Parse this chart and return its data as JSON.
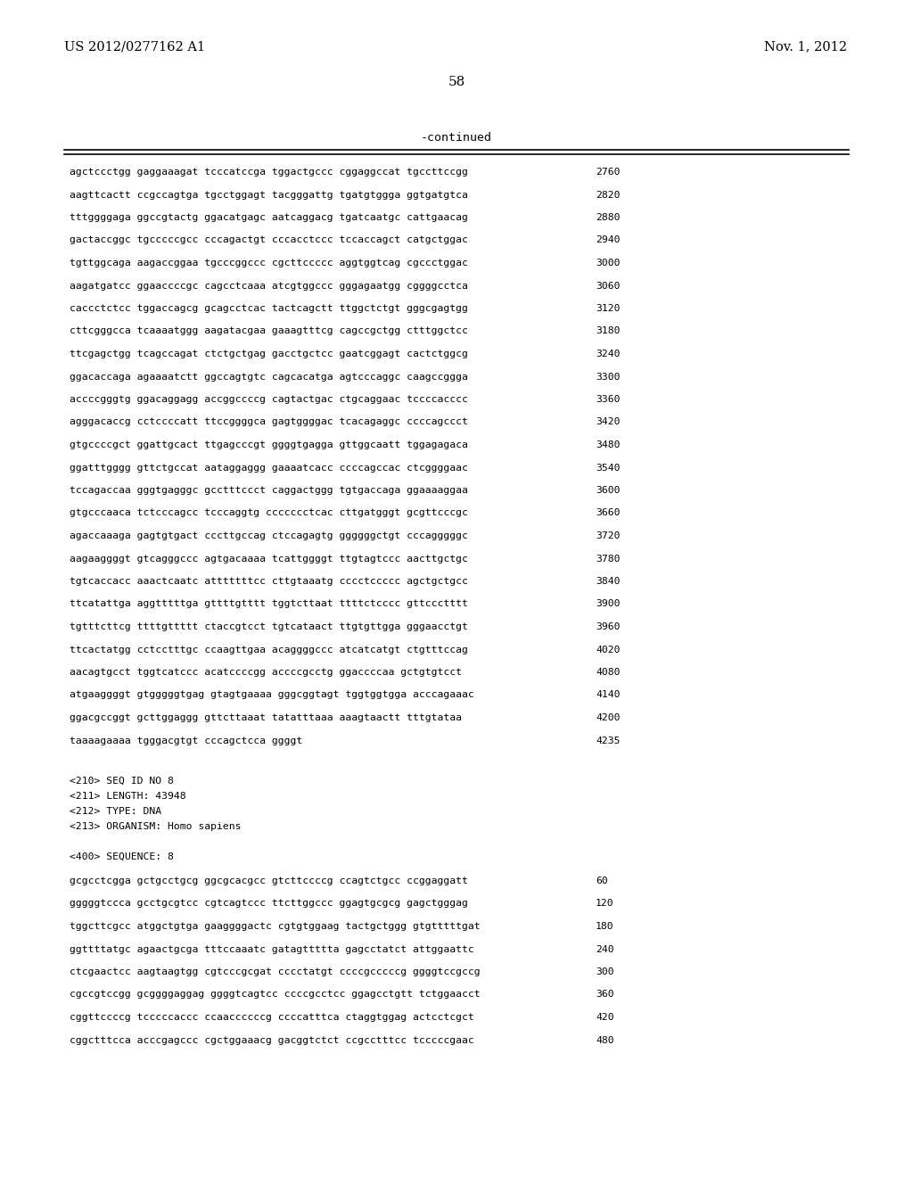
{
  "header_left": "US 2012/0277162 A1",
  "header_right": "Nov. 1, 2012",
  "page_number": "58",
  "continued_label": "-continued",
  "background_color": "#ffffff",
  "text_color": "#000000",
  "sequence_lines": [
    [
      "agctccctgg gaggaaagat tcccatccga tggactgccc cggaggccat tgccttccgg",
      "2760"
    ],
    [
      "aagttcactt ccgccagtga tgcctggagt tacgggattg tgatgtggga ggtgatgtca",
      "2820"
    ],
    [
      "tttggggaga ggccgtactg ggacatgagc aatcaggacg tgatcaatgc cattgaacag",
      "2880"
    ],
    [
      "gactaccggc tgcccccgcc cccagactgt cccacctccc tccaccagct catgctggac",
      "2940"
    ],
    [
      "tgttggcaga aagaccggaa tgcccggccc cgcttccccc aggtggtcag cgccctggac",
      "3000"
    ],
    [
      "aagatgatcc ggaaccccgc cagcctcaaa atcgtggccc gggagaatgg cggggcctca",
      "3060"
    ],
    [
      "caccctctcc tggaccagcg gcagcctcac tactcagctt ttggctctgt gggcgagtgg",
      "3120"
    ],
    [
      "cttcgggcca tcaaaatggg aagatacgaa gaaagtttcg cagccgctgg ctttggctcc",
      "3180"
    ],
    [
      "ttcgagctgg tcagccagat ctctgctgag gacctgctcc gaatcggagt cactctggcg",
      "3240"
    ],
    [
      "ggacaccaga agaaaatctt ggccagtgtc cagcacatga agtcccaggc caagccggga",
      "3300"
    ],
    [
      "accccgggtg ggacaggagg accggccccg cagtactgac ctgcaggaac tccccacccc",
      "3360"
    ],
    [
      "agggacaccg cctccccatt ttccggggca gagtggggac tcacagaggc ccccagccct",
      "3420"
    ],
    [
      "gtgccccgct ggattgcact ttgagcccgt ggggtgagga gttggcaatt tggagagaca",
      "3480"
    ],
    [
      "ggatttgggg gttctgccat aataggaggg gaaaatcacc ccccagccac ctcggggaac",
      "3540"
    ],
    [
      "tccagaccaa gggtgagggc gcctttccct caggactggg tgtgaccaga ggaaaaggaa",
      "3600"
    ],
    [
      "gtgcccaaca tctcccagcc tcccaggtg ccccccctcac cttgatgggt gcgttcccgc",
      "3660"
    ],
    [
      "agaccaaaga gagtgtgact cccttgccag ctccagagtg ggggggctgt cccagggggc",
      "3720"
    ],
    [
      "aagaaggggt gtcagggccc agtgacaaaa tcattggggt ttgtagtccc aacttgctgc",
      "3780"
    ],
    [
      "tgtcaccacc aaactcaatc atttttttcc cttgtaaatg cccctccccc agctgctgcc",
      "3840"
    ],
    [
      "ttcatattga aggtttttga gttttgtttt tggtcttaat ttttctcccc gttccctttt",
      "3900"
    ],
    [
      "tgtttcttcg ttttgttttt ctaccgtcct tgtcataact ttgtgttgga gggaacctgt",
      "3960"
    ],
    [
      "ttcactatgg cctcctttgc ccaagttgaa acaggggccc atcatcatgt ctgtttccag",
      "4020"
    ],
    [
      "aacagtgcct tggtcatccc acatccccgg accccgcctg ggaccccaa gctgtgtcct",
      "4080"
    ],
    [
      "atgaaggggt gtgggggtgag gtagtgaaaa gggcggtagt tggtggtgga acccagaaac",
      "4140"
    ],
    [
      "ggacgccggt gcttggaggg gttcttaaat tatatttaaa aaagtaactt tttgtataa",
      "4200"
    ],
    [
      "taaaagaaaa tgggacgtgt cccagctcca ggggt",
      "4235"
    ]
  ],
  "metadata_lines": [
    "<210> SEQ ID NO 8",
    "<211> LENGTH: 43948",
    "<212> TYPE: DNA",
    "<213> ORGANISM: Homo sapiens",
    "",
    "<400> SEQUENCE: 8"
  ],
  "sequence2_lines": [
    [
      "gcgcctcgga gctgcctgcg ggcgcacgcc gtcttccccg ccagtctgcc ccggaggatt",
      "60"
    ],
    [
      "gggggtccca gcctgcgtcc cgtcagtccc ttcttggccc ggagtgcgcg gagctgggag",
      "120"
    ],
    [
      "tggcttcgcc atggctgtga gaaggggactc cgtgtggaag tactgctggg gtgtttttgat",
      "180"
    ],
    [
      "ggttttatgc agaactgcga tttccaaatc gatagttttta gagcctatct attggaattc",
      "240"
    ],
    [
      "ctcgaactcc aagtaagtgg cgtcccgcgat cccctatgt ccccgcccccg ggggtccgccg",
      "300"
    ],
    [
      "cgccgtccgg gcggggaggag ggggtcagtcc ccccgcctcc ggagcctgtt tctggaacct",
      "360"
    ],
    [
      "cggttccccg tcccccaccc ccaaccccccg ccccatttca ctaggtggag actcctcgct",
      "420"
    ],
    [
      "cggctttcca acccgagccc cgctggaaacg gacggtctct ccgcctttcc tcccccgaac",
      "480"
    ]
  ]
}
